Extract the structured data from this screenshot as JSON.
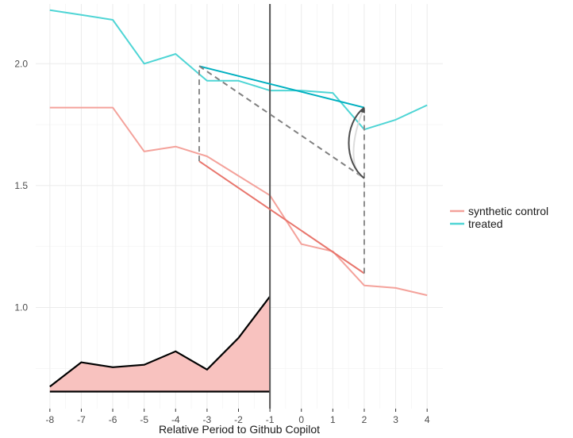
{
  "chart_data": {
    "type": "line",
    "xlabel": "Relative Period to Github Copilot",
    "ylabel": "",
    "title": "",
    "x_ticks": [
      -8,
      -7,
      -6,
      -5,
      -4,
      -3,
      -2,
      -1,
      0,
      1,
      2,
      3,
      4
    ],
    "y_ticks": [
      1.0,
      1.5,
      2.0
    ],
    "y_tick_labels": [
      "1.0",
      "1.5",
      "2.0"
    ],
    "xlim": [
      -8.45,
      4.5
    ],
    "ylim": [
      0.585,
      2.245
    ],
    "grid": true,
    "legend_position": "right",
    "treatment_period": -1,
    "series": [
      {
        "name": "treated",
        "color": "#4fd5d5",
        "x": [
          -8,
          -7,
          -6,
          -5,
          -4,
          -3,
          -2,
          -1,
          0,
          1,
          2,
          3,
          4
        ],
        "y": [
          2.22,
          2.2,
          2.18,
          2.0,
          2.04,
          1.93,
          1.93,
          1.89,
          1.89,
          1.88,
          1.73,
          1.77,
          1.83
        ]
      },
      {
        "name": "synthetic control",
        "color": "#f4a29b",
        "x": [
          -8,
          -7,
          -6,
          -5,
          -4,
          -3,
          -2,
          -1,
          0,
          1,
          2,
          3,
          4
        ],
        "y": [
          1.82,
          1.82,
          1.82,
          1.64,
          1.66,
          1.62,
          1.54,
          1.46,
          1.26,
          1.23,
          1.09,
          1.08,
          1.05
        ]
      }
    ],
    "trend_lines": [
      {
        "series": "treated",
        "color": "#00b0c0",
        "x": [
          -3.25,
          2
        ],
        "y": [
          1.99,
          1.82
        ]
      },
      {
        "series": "synthetic control",
        "color": "#e8766d",
        "x": [
          -3.25,
          2
        ],
        "y": [
          1.6,
          1.14
        ]
      }
    ],
    "counterfactual_line": {
      "color": "#808080",
      "x": [
        -3.25,
        2
      ],
      "y": [
        1.99,
        1.53
      ]
    },
    "dashed_verticals": [
      {
        "x": -3.25,
        "y": [
          1.6,
          1.99
        ]
      },
      {
        "x": 2,
        "y": [
          1.14,
          1.82
        ]
      }
    ],
    "curved_arrow": {
      "color": "#4d4d4d",
      "ghost_color": "#dcdcdc",
      "x": 2,
      "from_y": 1.53,
      "to_y": 1.82
    },
    "weights_area": {
      "fill": "#f8c2bf",
      "x": [
        -8,
        -7,
        -6,
        -5,
        -4,
        -3,
        -2,
        -1
      ],
      "y": [
        0.675,
        0.775,
        0.755,
        0.765,
        0.82,
        0.745,
        0.875,
        1.045
      ],
      "baseline": 0.655
    }
  }
}
